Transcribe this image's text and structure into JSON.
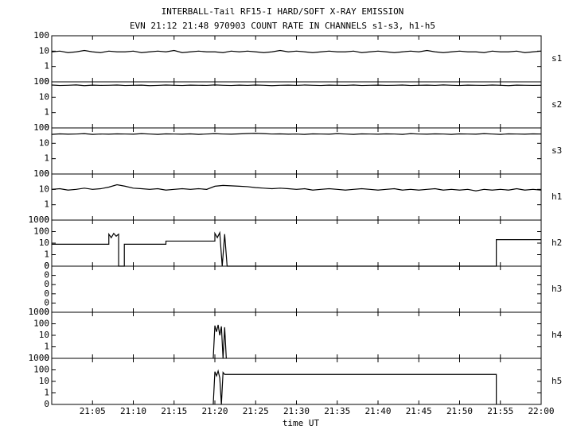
{
  "chart_data": [
    {
      "type": "line",
      "title": "INTERBALL-Tail RF15-I HARD/SOFT X-RAY EMISSION",
      "subtitle": "EVN 21:12 21:48 970903  COUNT RATE IN CHANNELS s1-s3, h1-h5",
      "label": "s1",
      "log": true,
      "color": "#000000",
      "xlim": [
        0,
        60
      ],
      "ylim": [
        0.1,
        100
      ],
      "yticks": [
        {
          "value": 0.1,
          "label": "0"
        },
        1,
        10,
        100
      ],
      "x": [
        0,
        1,
        2,
        3,
        4,
        5,
        6,
        7,
        8,
        9,
        10,
        11,
        12,
        13,
        14,
        15,
        16,
        17,
        18,
        19,
        20,
        21,
        22,
        23,
        24,
        25,
        26,
        27,
        28,
        29,
        30,
        31,
        32,
        33,
        34,
        35,
        36,
        37,
        38,
        39,
        40,
        41,
        42,
        43,
        44,
        45,
        46,
        47,
        48,
        49,
        50,
        51,
        52,
        53,
        54,
        55,
        56,
        57,
        58,
        59,
        60
      ],
      "values": [
        9,
        10,
        8,
        9,
        11,
        9,
        8,
        10,
        9,
        9,
        10,
        8,
        9,
        10,
        9,
        11,
        8,
        9,
        10,
        9,
        9,
        8,
        10,
        9,
        10,
        9,
        8,
        9,
        11,
        9,
        10,
        9,
        8,
        9,
        10,
        9,
        9,
        10,
        8,
        9,
        10,
        9,
        8,
        9,
        10,
        9,
        11,
        9,
        8,
        9,
        10,
        9,
        9,
        8,
        10,
        9,
        9,
        10,
        8,
        9,
        10
      ]
    },
    {
      "type": "line",
      "label": "s2",
      "log": true,
      "color": "#000000",
      "xlim": [
        0,
        60
      ],
      "ylim": [
        0.1,
        100
      ],
      "yticks": [
        {
          "value": 0.1,
          "label": "0"
        },
        1,
        10,
        100
      ],
      "x": [
        0,
        1,
        2,
        3,
        4,
        5,
        6,
        7,
        8,
        9,
        10,
        11,
        12,
        13,
        14,
        15,
        16,
        17,
        18,
        19,
        20,
        21,
        22,
        23,
        24,
        25,
        26,
        27,
        28,
        29,
        30,
        31,
        32,
        33,
        34,
        35,
        36,
        37,
        38,
        39,
        40,
        41,
        42,
        43,
        44,
        45,
        46,
        47,
        48,
        49,
        50,
        51,
        52,
        53,
        54,
        55,
        56,
        57,
        58,
        59,
        60
      ],
      "values": [
        62,
        58,
        60,
        63,
        57,
        61,
        59,
        60,
        62,
        58,
        60,
        61,
        57,
        59,
        62,
        60,
        58,
        61,
        60,
        59,
        63,
        60,
        58,
        61,
        59,
        62,
        60,
        57,
        60,
        61,
        59,
        62,
        60,
        58,
        61,
        60,
        59,
        62,
        58,
        60,
        61,
        59,
        60,
        62,
        58,
        60,
        61,
        59,
        63,
        60,
        58,
        61,
        60,
        59,
        62,
        60,
        57,
        61,
        60,
        59,
        60
      ]
    },
    {
      "type": "line",
      "label": "s3",
      "log": true,
      "color": "#000000",
      "xlim": [
        0,
        60
      ],
      "ylim": [
        0.1,
        100
      ],
      "yticks": [
        {
          "value": 0.1,
          "label": "0"
        },
        1,
        10,
        100
      ],
      "x": [
        0,
        1,
        2,
        3,
        4,
        5,
        6,
        7,
        8,
        9,
        10,
        11,
        12,
        13,
        14,
        15,
        16,
        17,
        18,
        19,
        20,
        21,
        22,
        23,
        24,
        25,
        26,
        27,
        28,
        29,
        30,
        31,
        32,
        33,
        34,
        35,
        36,
        37,
        38,
        39,
        40,
        41,
        42,
        43,
        44,
        45,
        46,
        47,
        48,
        49,
        50,
        51,
        52,
        53,
        54,
        55,
        56,
        57,
        58,
        59,
        60
      ],
      "values": [
        38,
        41,
        39,
        40,
        42,
        38,
        40,
        39,
        41,
        40,
        39,
        42,
        40,
        38,
        41,
        40,
        39,
        41,
        38,
        40,
        42,
        40,
        39,
        41,
        43,
        44,
        42,
        40,
        41,
        39,
        40,
        38,
        41,
        40,
        39,
        42,
        40,
        38,
        41,
        40,
        39,
        41,
        40,
        38,
        42,
        40,
        39,
        41,
        40,
        38,
        41,
        40,
        39,
        42,
        40,
        38,
        41,
        40,
        39,
        41,
        40
      ]
    },
    {
      "type": "line",
      "label": "h1",
      "log": true,
      "color": "#000000",
      "xlim": [
        0,
        60
      ],
      "ylim": [
        0.1,
        100
      ],
      "yticks": [
        {
          "value": 0.1,
          "label": "0"
        },
        1,
        10,
        100
      ],
      "x": [
        0,
        1,
        2,
        3,
        4,
        5,
        6,
        7,
        8,
        9,
        10,
        11,
        12,
        13,
        14,
        15,
        16,
        17,
        18,
        19,
        20,
        21,
        22,
        23,
        24,
        25,
        26,
        27,
        28,
        29,
        30,
        31,
        32,
        33,
        34,
        35,
        36,
        37,
        38,
        39,
        40,
        41,
        42,
        43,
        44,
        45,
        46,
        47,
        48,
        49,
        50,
        51,
        52,
        53,
        54,
        55,
        56,
        57,
        58,
        59,
        60
      ],
      "values": [
        10,
        11,
        9,
        10,
        12,
        10,
        11,
        14,
        20,
        16,
        12,
        11,
        10,
        11,
        9,
        10,
        11,
        10,
        11,
        10,
        16,
        18,
        17,
        16,
        15,
        13,
        12,
        11,
        12,
        11,
        10,
        11,
        9,
        10,
        11,
        10,
        9,
        10,
        11,
        10,
        9,
        10,
        11,
        9,
        10,
        9,
        10,
        11,
        9,
        10,
        9,
        10,
        8,
        10,
        9,
        10,
        9,
        11,
        9,
        10,
        9
      ]
    },
    {
      "type": "line",
      "label": "h2",
      "log": true,
      "color": "#000000",
      "xlim": [
        0,
        60
      ],
      "ylim": [
        0.1,
        1000
      ],
      "yticks": [
        {
          "value": 0.1,
          "label": "0"
        },
        1,
        10,
        100,
        1000
      ],
      "x": [
        0,
        7,
        7,
        7.3,
        7.6,
        7.9,
        8.2,
        8.2,
        8.9,
        8.9,
        14,
        14,
        20,
        20,
        20.3,
        20.6,
        20.9,
        21.2,
        21.5,
        54.5,
        54.5,
        60
      ],
      "values": [
        8,
        8,
        60,
        30,
        70,
        40,
        60,
        0.1,
        0.1,
        8,
        8,
        15,
        15,
        70,
        30,
        80,
        0.1,
        60,
        0.1,
        0.1,
        20,
        20
      ]
    },
    {
      "type": "line",
      "label": "h3",
      "log": false,
      "color": "#000000",
      "xlim": [
        0,
        60
      ],
      "ylim": [
        0,
        0.4
      ],
      "yticks": [
        {
          "value": 0,
          "label": "0"
        },
        {
          "value": 0.08,
          "label": "0"
        },
        {
          "value": 0.16,
          "label": "0"
        },
        {
          "value": 0.24,
          "label": "0"
        },
        {
          "value": 0.32,
          "label": "0"
        },
        {
          "value": 0.4,
          "label": "0"
        }
      ],
      "x": [],
      "values": []
    },
    {
      "type": "line",
      "label": "h4",
      "log": true,
      "color": "#000000",
      "xlim": [
        0,
        60
      ],
      "ylim": [
        0.1,
        1000
      ],
      "yticks": [
        {
          "value": 0.1,
          "label": "0"
        },
        1,
        10,
        100,
        1000
      ],
      "x": [
        19.8,
        20,
        20.2,
        20.4,
        20.6,
        20.8,
        21,
        21.2,
        21.4
      ],
      "values": [
        0.1,
        70,
        20,
        80,
        10,
        60,
        0.1,
        50,
        0.1
      ]
    },
    {
      "type": "line",
      "label": "h5",
      "log": true,
      "color": "#000000",
      "xlim": [
        0,
        60
      ],
      "ylim": [
        0.1,
        1000
      ],
      "yticks": [
        {
          "value": 0.1,
          "label": "0"
        },
        1,
        10,
        100,
        1000
      ],
      "x": [
        19.8,
        20,
        20.2,
        20.4,
        20.6,
        20.8,
        21,
        21.2,
        21.4,
        54.5,
        54.5
      ],
      "values": [
        0.1,
        70,
        30,
        80,
        20,
        0.1,
        60,
        40,
        40,
        40,
        0.1
      ],
      "xlabel": "time UT",
      "xticks": [
        {
          "value": 5,
          "label": "21:05"
        },
        {
          "value": 10,
          "label": "21:10"
        },
        {
          "value": 15,
          "label": "21:15"
        },
        {
          "value": 20,
          "label": "21:20"
        },
        {
          "value": 25,
          "label": "21:25"
        },
        {
          "value": 30,
          "label": "21:30"
        },
        {
          "value": 35,
          "label": "21:35"
        },
        {
          "value": 40,
          "label": "21:40"
        },
        {
          "value": 45,
          "label": "21:45"
        },
        {
          "value": 50,
          "label": "21:50"
        },
        {
          "value": 55,
          "label": "21:55"
        },
        {
          "value": 60,
          "label": "22:00"
        }
      ]
    }
  ]
}
